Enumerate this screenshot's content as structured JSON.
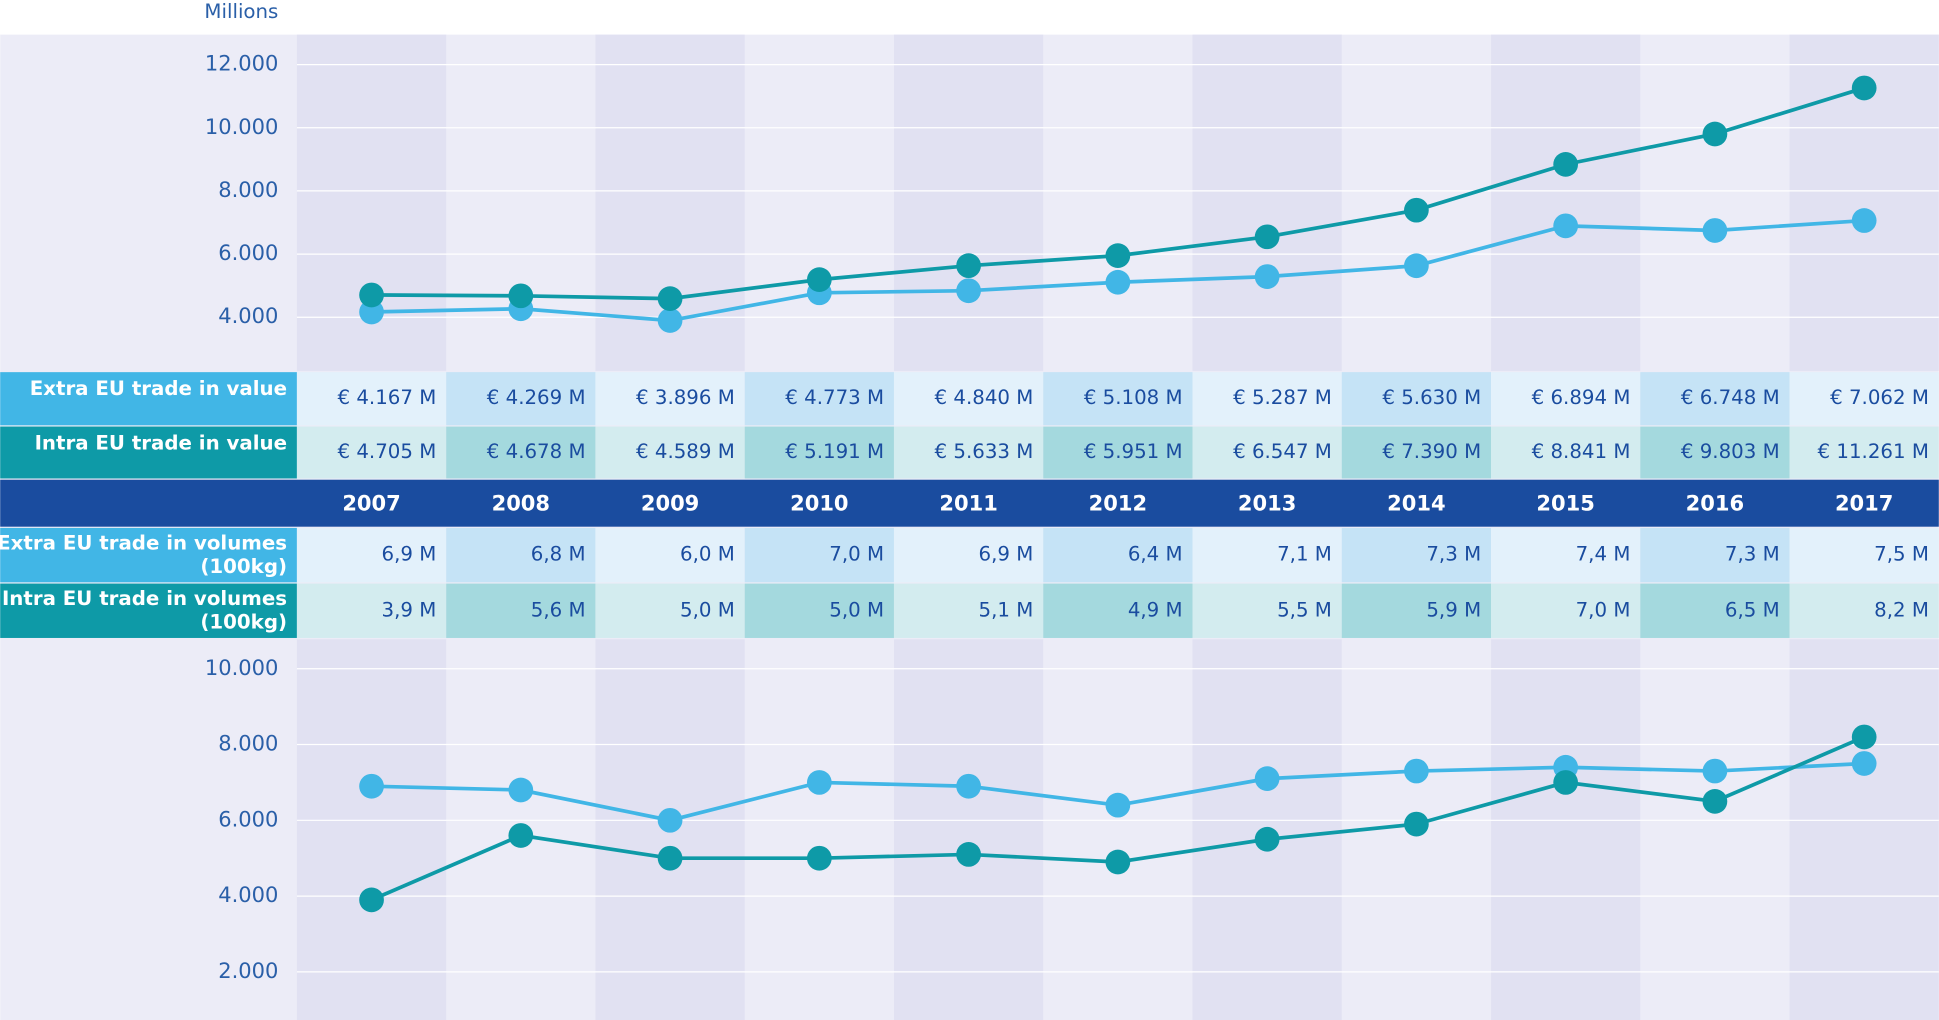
{
  "chart_data": [
    {
      "type": "line",
      "axis_label": "Millions",
      "categories": [
        "2007",
        "2008",
        "2009",
        "2010",
        "2011",
        "2012",
        "2013",
        "2014",
        "2015",
        "2016",
        "2017"
      ],
      "ylim": [
        2300,
        12950
      ],
      "yticks": [
        {
          "value": 4000,
          "label": "4.000"
        },
        {
          "value": 6000,
          "label": "6.000"
        },
        {
          "value": 8000,
          "label": "8.000"
        },
        {
          "value": 10000,
          "label": "10.000"
        },
        {
          "value": 12000,
          "label": "12.000"
        }
      ],
      "grid": true,
      "series": [
        {
          "name": "Extra EU trade in value",
          "color": "#41b6e6",
          "values": [
            4167,
            4269,
            3896,
            4773,
            4840,
            5108,
            5287,
            5630,
            6894,
            6748,
            7062
          ],
          "value_labels": [
            "€ 4.167 M",
            "€ 4.269 M",
            "€ 3.896 M",
            "€ 4.773 M",
            "€ 4.840 M",
            "€ 5.108 M",
            "€ 5.287 M",
            "€ 5.630 M",
            "€ 6.894 M",
            "€ 6.748 M",
            "€ 7.062 M"
          ]
        },
        {
          "name": "Intra EU trade in value",
          "color": "#0e9aa7",
          "values": [
            4705,
            4678,
            4589,
            5191,
            5633,
            5951,
            6547,
            7390,
            8841,
            9803,
            11261
          ],
          "value_labels": [
            "€ 4.705 M",
            "€ 4.678 M",
            "€ 4.589 M",
            "€ 5.191 M",
            "€ 5.633 M",
            "€ 5.951 M",
            "€ 6.547 M",
            "€ 7.390 M",
            "€ 8.841 M",
            "€ 9.803 M",
            "€ 11.261 M"
          ]
        }
      ]
    },
    {
      "type": "line",
      "ylim": [
        730,
        10780
      ],
      "yticks": [
        {
          "value": 2000,
          "label": "2.000"
        },
        {
          "value": 4000,
          "label": "4.000"
        },
        {
          "value": 6000,
          "label": "6.000"
        },
        {
          "value": 8000,
          "label": "8.000"
        },
        {
          "value": 10000,
          "label": "10.000"
        }
      ],
      "grid": true,
      "series": [
        {
          "name": "Extra EU trade in volumes",
          "unit": "(100kg)",
          "color": "#41b6e6",
          "values": [
            6900,
            6800,
            6000,
            7000,
            6900,
            6400,
            7100,
            7300,
            7400,
            7300,
            7500
          ],
          "value_labels": [
            "6,9 M",
            "6,8 M",
            "6,0 M",
            "7,0 M",
            "6,9 M",
            "6,4 M",
            "7,1 M",
            "7,3 M",
            "7,4 M",
            "7,3 M",
            "7,5 M"
          ]
        },
        {
          "name": "Intra EU trade in volumes",
          "unit": "(100kg)",
          "color": "#0e9aa7",
          "values": [
            3900,
            5600,
            5000,
            5000,
            5100,
            4900,
            5500,
            5900,
            7000,
            6500,
            8200
          ],
          "value_labels": [
            "3,9 M",
            "5,6 M",
            "5,0 M",
            "5,0 M",
            "5,1 M",
            "4,9 M",
            "5,5 M",
            "5,9 M",
            "7,0 M",
            "6,5 M",
            "8,2 M"
          ]
        }
      ]
    }
  ]
}
